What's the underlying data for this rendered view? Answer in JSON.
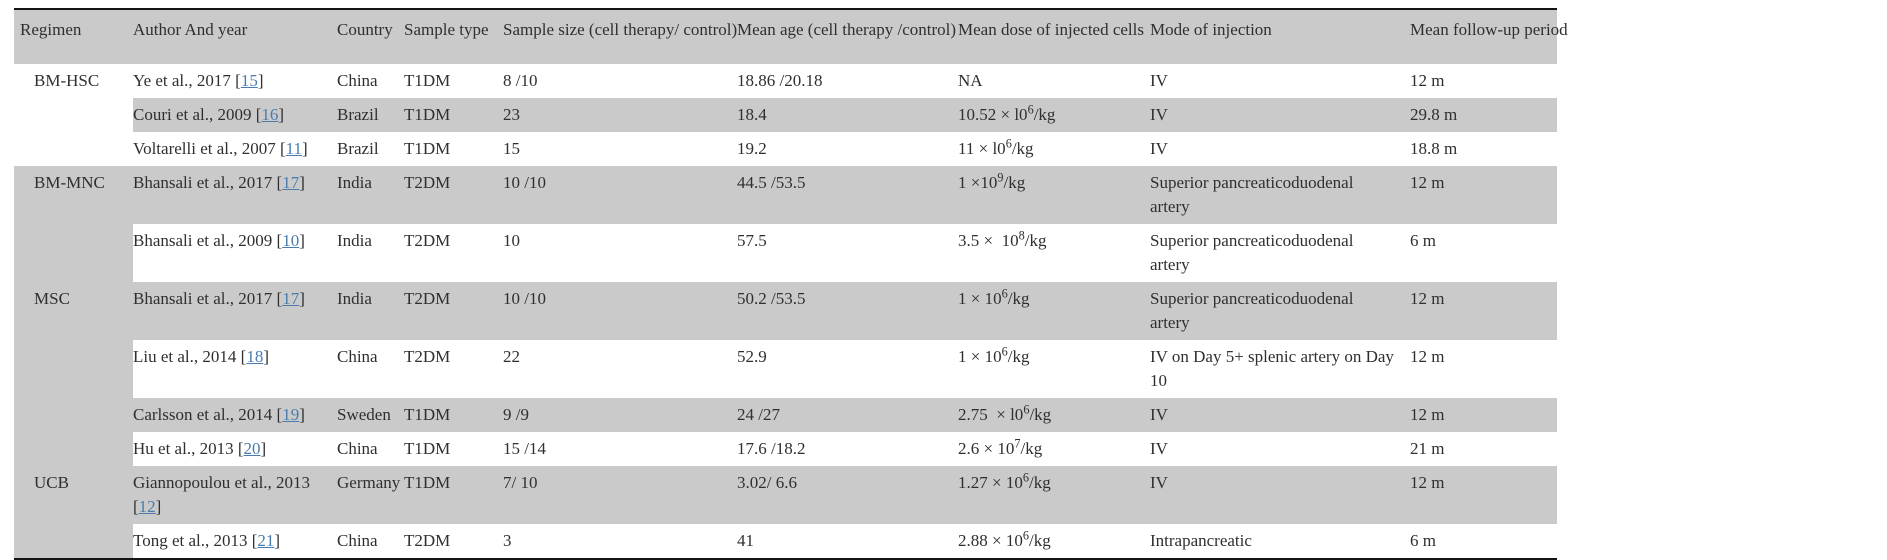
{
  "table": {
    "colors": {
      "row_shade": "#cacaca",
      "text": "#2f2f2f",
      "link": "#4a7dad",
      "border": "#141414"
    },
    "columns": [
      "Regimen",
      "Author And year",
      "Country",
      "Sample type",
      "Sample size (cell therapy/ control)",
      "Mean age (cell therapy /control)",
      "Mean dose of injected cells",
      "Mode of injection",
      "Mean follow-up period"
    ],
    "rows": [
      {
        "regimen": {
          "label": "BM-HSC",
          "span": 3,
          "shade": false
        },
        "author": "Ye et al., 2017",
        "ref": "15",
        "country": "China",
        "sample_type": "T1DM",
        "sample_size": "8 /10",
        "mean_age": "18.86 /20.18",
        "dose": {
          "pre": "NA",
          "sup": "",
          "post": ""
        },
        "mode": "IV",
        "follow_up": "12 m",
        "shaded": false
      },
      {
        "author": "Couri et al., 2009",
        "ref": "16",
        "country": "Brazil",
        "sample_type": "T1DM",
        "sample_size": "23",
        "mean_age": "18.4",
        "dose": {
          "pre": "10.52 × l0",
          "sup": "6",
          "post": "/kg"
        },
        "mode": "IV",
        "follow_up": "29.8 m",
        "shaded": true
      },
      {
        "author": "Voltarelli et al., 2007",
        "ref": "11",
        "country": "Brazil",
        "sample_type": "T1DM",
        "sample_size": "15",
        "mean_age": "19.2",
        "dose": {
          "pre": "11 × l0",
          "sup": "6",
          "post": "/kg"
        },
        "mode": "IV",
        "follow_up": "18.8 m",
        "shaded": false
      },
      {
        "regimen": {
          "label": "BM-MNC",
          "span": 2,
          "shade": true
        },
        "author": "Bhansali et al., 2017",
        "ref": "17",
        "country": "India",
        "sample_type": "T2DM",
        "sample_size": "10 /10",
        "mean_age": "44.5 /53.5",
        "dose": {
          "pre": "1 ×10",
          "sup": "9",
          "post": "/kg"
        },
        "mode": "Superior pancreaticoduodenal artery",
        "follow_up": "12 m",
        "shaded": true
      },
      {
        "author": "Bhansali et al., 2009",
        "ref": "10",
        "country": "India",
        "sample_type": "T2DM",
        "sample_size": "10",
        "mean_age": "57.5",
        "dose": {
          "pre": "3.5 ×  10",
          "sup": "8",
          "post": "/kg"
        },
        "mode": "Superior pancreaticoduodenal artery",
        "follow_up": "6 m",
        "shaded": false
      },
      {
        "regimen": {
          "label": "MSC",
          "span": 4,
          "shade": true
        },
        "author": "Bhansali et al., 2017",
        "ref": "17",
        "country": "India",
        "sample_type": "T2DM",
        "sample_size": "10 /10",
        "mean_age": "50.2 /53.5",
        "dose": {
          "pre": "1 × 10",
          "sup": "6",
          "post": "/kg"
        },
        "mode": "Superior pancreaticoduodenal artery",
        "follow_up": "12 m",
        "shaded": true
      },
      {
        "author": "Liu et al., 2014",
        "ref": "18",
        "country": "China",
        "sample_type": "T2DM",
        "sample_size": "22",
        "mean_age": "52.9",
        "dose": {
          "pre": "1 × 10",
          "sup": "6",
          "post": "/kg"
        },
        "mode": "IV on Day 5+ splenic artery on Day 10",
        "follow_up": "12 m",
        "shaded": false
      },
      {
        "author": "Carlsson et al., 2014",
        "ref": "19",
        "country": "Sweden",
        "sample_type": "T1DM",
        "sample_size": "9 /9",
        "mean_age": "24 /27",
        "dose": {
          "pre": "2.75  × l0",
          "sup": "6",
          "post": "/kg"
        },
        "mode": "IV",
        "follow_up": "12 m",
        "shaded": true
      },
      {
        "author": "Hu et al., 2013",
        "ref": "20",
        "country": "China",
        "sample_type": "T1DM",
        "sample_size": "15 /14",
        "mean_age": "17.6 /18.2",
        "dose": {
          "pre": "2.6 × 10",
          "sup": "7",
          "post": "/kg"
        },
        "mode": "IV",
        "follow_up": "21 m",
        "shaded": false
      },
      {
        "regimen": {
          "label": "UCB",
          "span": 2,
          "shade": true
        },
        "author": "Giannopoulou et al., 2013",
        "ref": "12",
        "country": "Germany",
        "sample_type": "T1DM",
        "sample_size": "7/ 10",
        "mean_age": "3.02/ 6.6",
        "dose": {
          "pre": "1.27 × 10",
          "sup": "6",
          "post": "/kg"
        },
        "mode": "IV",
        "follow_up": "12 m",
        "shaded": true
      },
      {
        "author": "Tong et al., 2013",
        "ref": "21",
        "country": "China",
        "sample_type": "T2DM",
        "sample_size": "3",
        "mean_age": "41",
        "dose": {
          "pre": "2.88 × 10",
          "sup": "6",
          "post": "/kg"
        },
        "mode": "Intrapancreatic",
        "follow_up": "6 m",
        "shaded": false
      }
    ]
  }
}
